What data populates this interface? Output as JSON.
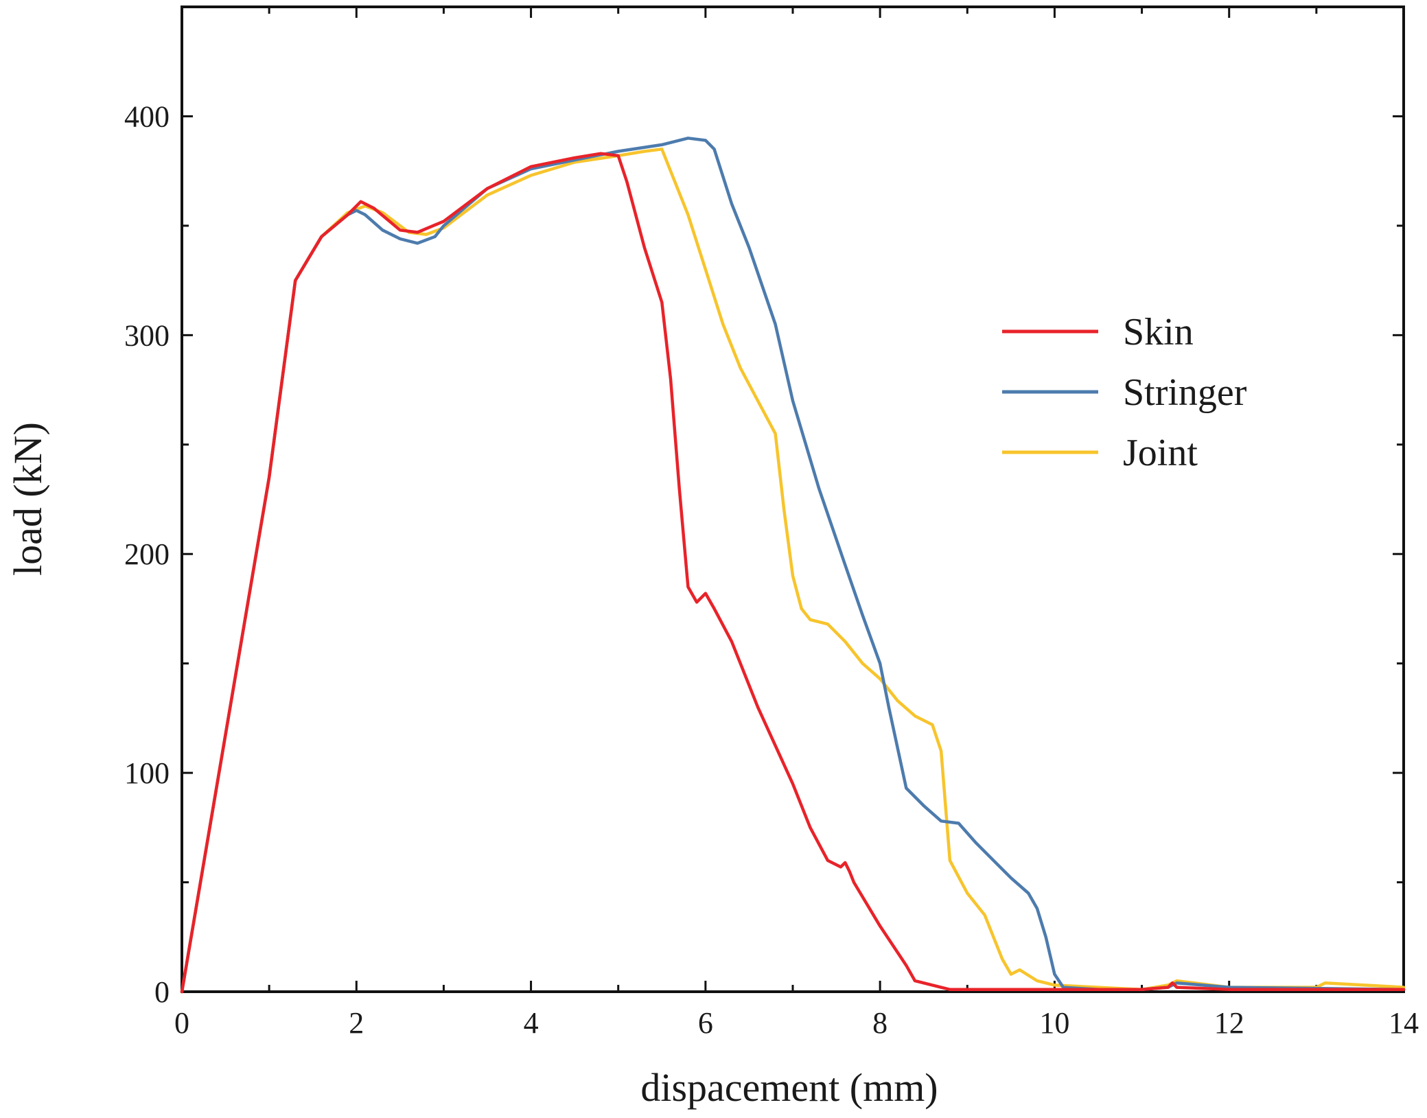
{
  "chart_data": {
    "type": "line",
    "title": "",
    "xlabel": "dispacement (mm)",
    "ylabel": "load  (kN)",
    "xlim": [
      0,
      14
    ],
    "ylim": [
      0,
      450
    ],
    "xticks": [
      0,
      2,
      4,
      6,
      8,
      10,
      12,
      14
    ],
    "xminor": [
      1,
      3,
      5,
      7,
      9,
      11,
      13
    ],
    "yticks": [
      0,
      100,
      200,
      300,
      400
    ],
    "yminor": [
      50,
      150,
      250,
      350
    ],
    "grid": false,
    "legend_position": "right-middle",
    "series": [
      {
        "name": "Skin",
        "color": "#e8232a",
        "x": [
          0,
          1.0,
          1.3,
          1.6,
          1.9,
          2.05,
          2.2,
          2.5,
          2.7,
          3.0,
          3.5,
          4.0,
          4.5,
          4.8,
          5.0,
          5.1,
          5.3,
          5.5,
          5.6,
          5.7,
          5.8,
          5.9,
          6.0,
          6.1,
          6.3,
          6.6,
          7.0,
          7.2,
          7.4,
          7.55,
          7.6,
          7.65,
          7.7,
          8.0,
          8.3,
          8.4,
          8.6,
          8.8,
          9.0,
          10.0,
          11.0,
          11.3,
          11.35,
          11.4,
          12.0,
          14.0
        ],
        "y": [
          0,
          235,
          325,
          345,
          355,
          361,
          358,
          348,
          347,
          352,
          367,
          377,
          381,
          383,
          382,
          370,
          340,
          315,
          280,
          230,
          185,
          178,
          182,
          175,
          160,
          130,
          95,
          75,
          60,
          57,
          59,
          55,
          50,
          30,
          12,
          5,
          3,
          1,
          1,
          1,
          1,
          2,
          4,
          2,
          1,
          1
        ]
      },
      {
        "name": "Stringer",
        "color": "#4d7bad",
        "x": [
          0,
          1.0,
          1.3,
          1.6,
          1.9,
          2.0,
          2.1,
          2.3,
          2.5,
          2.7,
          2.9,
          3.0,
          3.5,
          4.0,
          4.5,
          5.0,
          5.5,
          5.8,
          6.0,
          6.1,
          6.3,
          6.5,
          6.8,
          7.0,
          7.3,
          7.6,
          7.8,
          8.0,
          8.1,
          8.3,
          8.5,
          8.7,
          8.9,
          9.1,
          9.3,
          9.5,
          9.7,
          9.8,
          9.9,
          10.0,
          10.1,
          10.5,
          11.0,
          11.3,
          11.4,
          12.0,
          14.0
        ],
        "y": [
          0,
          235,
          325,
          345,
          355,
          357,
          355,
          348,
          344,
          342,
          345,
          350,
          367,
          376,
          380,
          384,
          387,
          390,
          389,
          385,
          360,
          340,
          305,
          270,
          230,
          195,
          172,
          150,
          130,
          93,
          85,
          78,
          77,
          68,
          60,
          52,
          45,
          38,
          25,
          8,
          2,
          1,
          1,
          2,
          4,
          2,
          1
        ]
      },
      {
        "name": "Joint",
        "color": "#f7c42c",
        "x": [
          0,
          1.0,
          1.3,
          1.6,
          1.9,
          2.1,
          2.3,
          2.6,
          2.8,
          3.0,
          3.5,
          4.0,
          4.5,
          5.0,
          5.3,
          5.5,
          5.6,
          5.8,
          6.0,
          6.2,
          6.4,
          6.6,
          6.8,
          6.9,
          7.0,
          7.1,
          7.2,
          7.4,
          7.6,
          7.8,
          8.0,
          8.2,
          8.4,
          8.6,
          8.7,
          8.8,
          9.0,
          9.2,
          9.3,
          9.4,
          9.5,
          9.6,
          9.8,
          10.0,
          10.5,
          11.0,
          11.3,
          11.4,
          12.0,
          13.0,
          13.1,
          14.0
        ],
        "y": [
          0,
          235,
          325,
          345,
          356,
          359,
          356,
          347,
          346,
          349,
          364,
          373,
          379,
          382,
          384,
          385,
          375,
          355,
          330,
          305,
          285,
          270,
          255,
          220,
          190,
          175,
          170,
          168,
          160,
          150,
          143,
          133,
          126,
          122,
          110,
          60,
          45,
          35,
          25,
          15,
          8,
          10,
          5,
          3,
          2,
          1,
          3,
          5,
          2,
          2,
          4,
          2
        ]
      }
    ]
  }
}
